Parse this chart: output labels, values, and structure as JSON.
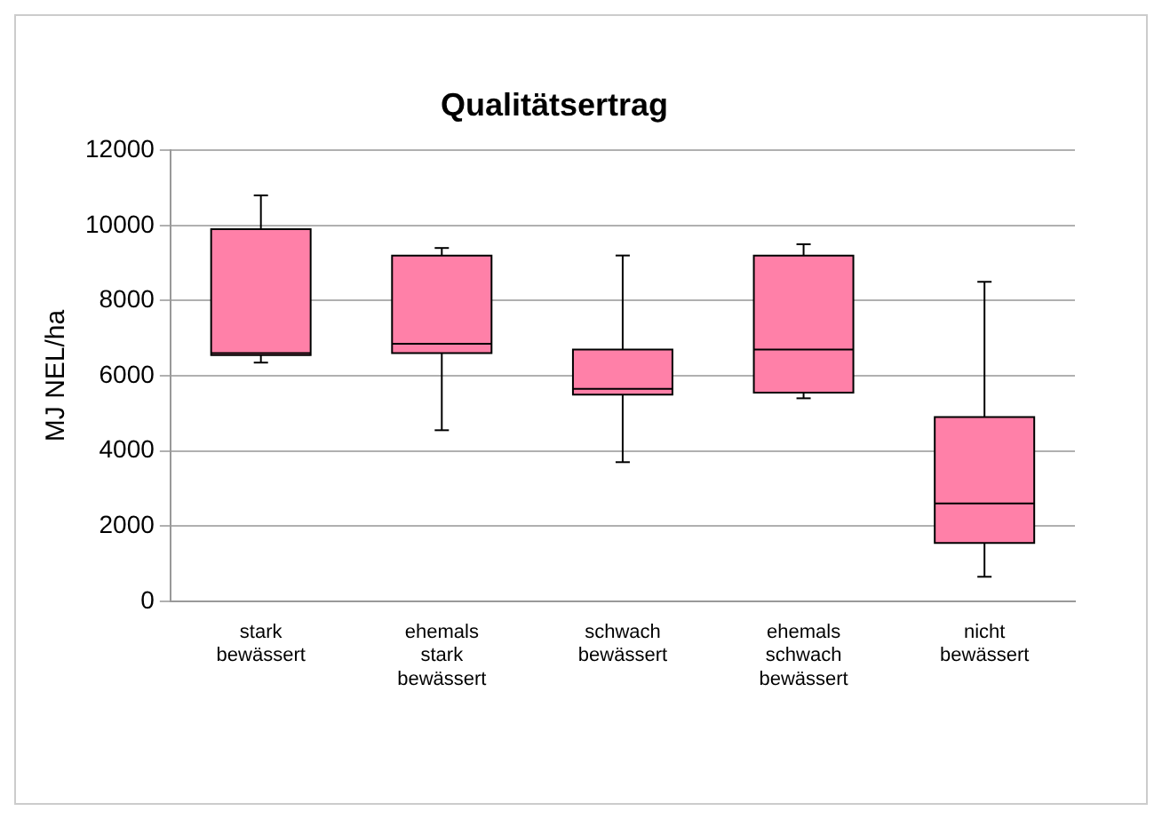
{
  "chart_data": {
    "type": "box",
    "title": "Qualitätsertrag",
    "ylabel": "MJ NEL/ha",
    "categories": [
      "stark bewässert",
      "ehemals stark bewässert",
      "schwach bewässert",
      "ehemals schwach bewässert",
      "nicht bewässert"
    ],
    "boxes": [
      {
        "low": 6350,
        "q1": 6550,
        "median": 6600,
        "q3": 9900,
        "high": 10800
      },
      {
        "low": 4550,
        "q1": 6600,
        "median": 6850,
        "q3": 9200,
        "high": 9400
      },
      {
        "low": 3700,
        "q1": 5500,
        "median": 5650,
        "q3": 6700,
        "high": 9200
      },
      {
        "low": 5400,
        "q1": 5550,
        "median": 6700,
        "q3": 9200,
        "high": 9500
      },
      {
        "low": 650,
        "q1": 1550,
        "median": 2600,
        "q3": 4900,
        "high": 8500
      }
    ],
    "color": "#ff80a8",
    "ylim": [
      0,
      12000
    ],
    "yticks": [
      0,
      2000,
      4000,
      6000,
      8000,
      10000,
      12000
    ],
    "grid": "y",
    "legend": false
  }
}
